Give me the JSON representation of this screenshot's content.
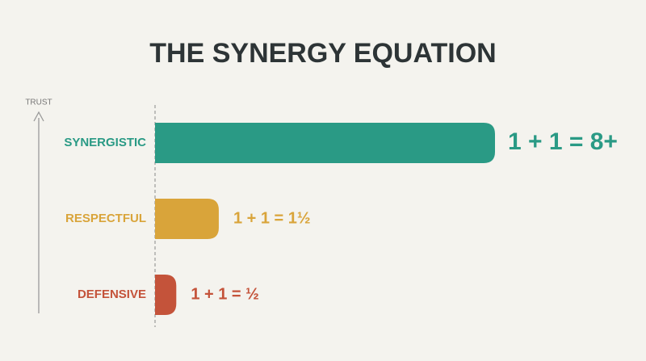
{
  "chart_data": {
    "type": "bar",
    "title": "THE SYNERGY EQUATION",
    "y_label": "TRUST",
    "categories": [
      "SYNERGISTIC",
      "RESPECTFUL",
      "DEFENSIVE"
    ],
    "values": [
      8,
      1.5,
      0.5
    ],
    "value_labels": [
      "1 + 1 = 8+",
      "1 + 1 = 1½",
      "1 + 1 = ½"
    ],
    "colors": [
      "#2a9a85",
      "#d9a43a",
      "#c4533a"
    ]
  }
}
